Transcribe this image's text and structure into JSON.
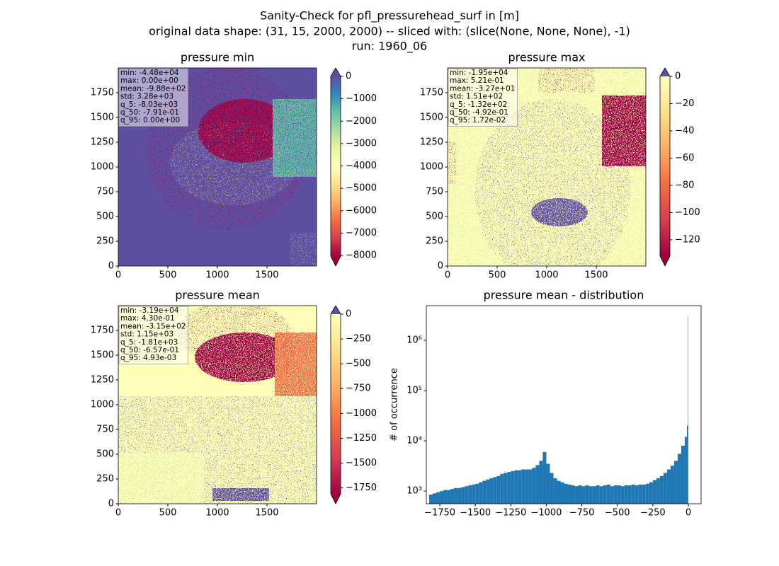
{
  "title": [
    "Sanity-Check for pfl_pressurehead_surf in [m]",
    "original data shape: (31, 15, 2000, 2000) -- sliced with: (slice(None, None, None), -1)",
    "run: 1960_06"
  ],
  "chart_data": [
    {
      "type": "heatmap",
      "title": "pressure min",
      "xlim": [
        0,
        2000
      ],
      "ylim": [
        0,
        2000
      ],
      "xticks": [
        0,
        500,
        1000,
        1500
      ],
      "yticks": [
        0,
        250,
        500,
        750,
        1000,
        1250,
        1500,
        1750
      ],
      "clim": [
        -8030,
        0
      ],
      "cticks": [
        0,
        {
          "value": -1000,
          "label": "−1000"
        },
        {
          "value": -2000,
          "label": "−2000"
        },
        {
          "value": -3000,
          "label": "−3000"
        },
        {
          "value": -4000,
          "label": "−4000"
        },
        {
          "value": -5000,
          "label": "−5000"
        },
        {
          "value": -6000,
          "label": "−6000"
        },
        {
          "value": -7000,
          "label": "−7000"
        },
        {
          "value": -8000,
          "label": "−8000"
        }
      ],
      "colors": [
        "#9e0142",
        "#d53e4f",
        "#f46d43",
        "#fdae61",
        "#fee08b",
        "#ffffbf",
        "#e6f598",
        "#abdda4",
        "#66c2a5",
        "#3288bd",
        "#5e4fa2"
      ],
      "extend_colors": [
        "#9e0142",
        "#5e4fa2"
      ],
      "stats": [
        "min: -4.48e+04",
        "max: 0.00e+00",
        "mean: -9.88e+02",
        "std: 3.28e+03",
        "q_5: -8.03e+03",
        "q_50: -7.91e-01",
        "q_95: 0.00e+00"
      ]
    },
    {
      "type": "heatmap",
      "title": "pressure max",
      "xlim": [
        0,
        2000
      ],
      "ylim": [
        0,
        2000
      ],
      "xticks": [
        0,
        500,
        1000,
        1500
      ],
      "yticks": [
        0,
        250,
        500,
        750,
        1000,
        1250,
        1500,
        1750
      ],
      "clim": [
        -132,
        0.0172
      ],
      "cticks": [
        0,
        {
          "value": -20,
          "label": "−20"
        },
        {
          "value": -40,
          "label": "−40"
        },
        {
          "value": -60,
          "label": "−60"
        },
        {
          "value": -80,
          "label": "−80"
        },
        {
          "value": -100,
          "label": "−100"
        },
        {
          "value": -120,
          "label": "−120"
        }
      ],
      "colors": [
        "#9e0142",
        "#d53e4f",
        "#f46d43",
        "#fdae61",
        "#fee08b",
        "#ffffbf"
      ],
      "extend_colors": [
        "#9e0142",
        "#5e4fa2"
      ],
      "stats": [
        "min: -1.95e+04",
        "max: 5.21e-01",
        "mean: -3.27e+01",
        "std: 1.51e+02",
        "q_5: -1.32e+02",
        "q_50: -4.92e-01",
        "q_95: 1.72e-02"
      ]
    },
    {
      "type": "heatmap",
      "title": "pressure mean",
      "xlim": [
        0,
        2000
      ],
      "ylim": [
        0,
        2000
      ],
      "xticks": [
        0,
        500,
        1000,
        1500
      ],
      "yticks": [
        0,
        250,
        500,
        750,
        1000,
        1250,
        1500,
        1750
      ],
      "clim": [
        -1810,
        0.00493
      ],
      "cticks": [
        0,
        {
          "value": -250,
          "label": "−250"
        },
        {
          "value": -500,
          "label": "−500"
        },
        {
          "value": -750,
          "label": "−750"
        },
        {
          "value": -1000,
          "label": "−1000"
        },
        {
          "value": -1250,
          "label": "−1250"
        },
        {
          "value": -1500,
          "label": "−1500"
        },
        {
          "value": -1750,
          "label": "−1750"
        }
      ],
      "colors": [
        "#9e0142",
        "#d53e4f",
        "#f46d43",
        "#fdae61",
        "#fee08b",
        "#ffffbf"
      ],
      "extend_colors": [
        "#9e0142",
        "#5e4fa2"
      ],
      "stats": [
        "min: -3.19e+04",
        "max: 4.30e-01",
        "mean: -3.15e+02",
        "std: 1.15e+03",
        "q_5: -1.81e+03",
        "q_50: -6.57e-01",
        "q_95: 4.93e-03"
      ]
    },
    {
      "type": "histogram",
      "title": "pressure mean - distribution",
      "y_label": "# of occurrence",
      "color": "#1f77b4",
      "log_y": true,
      "bins": [
        -1825,
        -1800,
        -1775,
        -1750,
        -1725,
        -1700,
        -1675,
        -1650,
        -1625,
        -1600,
        -1575,
        -1550,
        -1525,
        -1500,
        -1475,
        -1450,
        -1425,
        -1400,
        -1375,
        -1350,
        -1325,
        -1300,
        -1275,
        -1250,
        -1225,
        -1200,
        -1175,
        -1150,
        -1125,
        -1100,
        -1075,
        -1050,
        -1025,
        -1000,
        -975,
        -950,
        -925,
        -900,
        -875,
        -850,
        -825,
        -800,
        -775,
        -750,
        -725,
        -700,
        -675,
        -650,
        -625,
        -600,
        -575,
        -550,
        -525,
        -500,
        -475,
        -450,
        -425,
        -400,
        -375,
        -350,
        -325,
        -300,
        -275,
        -250,
        -225,
        -200,
        -175,
        -150,
        -125,
        -100,
        -75,
        -50,
        -25,
        -10,
        -3,
        0
      ],
      "values": [
        850,
        900,
        950,
        1000,
        1050,
        1050,
        1100,
        1150,
        1150,
        1200,
        1250,
        1300,
        1350,
        1400,
        1500,
        1600,
        1700,
        1800,
        1900,
        2000,
        2200,
        2300,
        2400,
        2500,
        2600,
        2600,
        2700,
        2700,
        2700,
        2900,
        3300,
        4000,
        6000,
        3500,
        2300,
        1800,
        1600,
        1500,
        1400,
        1350,
        1300,
        1250,
        1300,
        1250,
        1300,
        1250,
        1250,
        1300,
        1250,
        1300,
        1350,
        1250,
        1300,
        1300,
        1250,
        1300,
        1300,
        1350,
        1300,
        1350,
        1350,
        1400,
        1500,
        1650,
        1800,
        2000,
        2300,
        2700,
        3200,
        4000,
        5500,
        8000,
        12000,
        20000,
        3000000
      ],
      "xlim": [
        -1845,
        90
      ],
      "ylim": [
        560,
        4900000
      ],
      "xticks": [
        {
          "value": -1750,
          "label": "−1750"
        },
        {
          "value": -1500,
          "label": "−1500"
        },
        {
          "value": -1250,
          "label": "−1250"
        },
        {
          "value": -1000,
          "label": "−1000"
        },
        {
          "value": -750,
          "label": "−750"
        },
        {
          "value": -500,
          "label": "−500"
        },
        {
          "value": -250,
          "label": "−250"
        },
        0
      ],
      "yticks": [
        {
          "value": 1000,
          "label": "10³"
        },
        {
          "value": 10000,
          "label": "10⁴"
        },
        {
          "value": 100000,
          "label": "10⁵"
        },
        {
          "value": 1000000,
          "label": "10⁶"
        }
      ]
    }
  ]
}
